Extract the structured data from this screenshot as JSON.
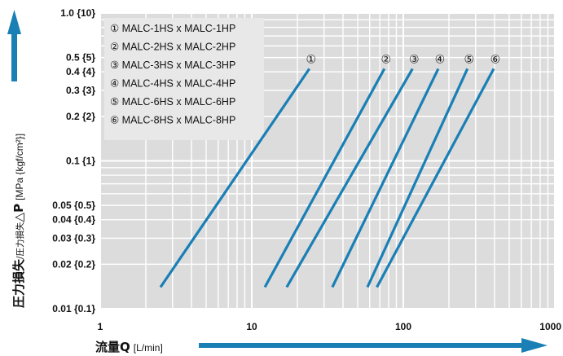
{
  "chart_data": {
    "type": "line",
    "x_scale": "log",
    "y_scale": "log",
    "xlim": [
      1,
      1000
    ],
    "ylim": [
      0.01,
      1.0
    ],
    "grid": true,
    "legend_position": "top-left",
    "x_ticks": [
      "1",
      "10",
      "100",
      "1000"
    ],
    "y_ticks": [
      "0.01 {0.1}",
      "0.02 {0.2}",
      "0.03 {0.3}",
      "0.04 {0.4}",
      "0.05 {0.5}",
      "0.1 {1}",
      "0.2 {2}",
      "0.3 {3}",
      "0.4 {4}",
      "0.5 {5}",
      "1.0 {10}"
    ],
    "xlabel": {
      "main": "流量Q",
      "unit": "[L/min]"
    },
    "ylabel": {
      "main": "圧力損失",
      "sub": "/圧力損失",
      "symbol": "△P",
      "unit": "[MPa {kgf/cm²}]"
    },
    "series": [
      {
        "name": "① MALC-1HS x MALC-1HP",
        "marker": "①",
        "x": [
          2.5,
          24
        ],
        "y": [
          0.014,
          0.42
        ]
      },
      {
        "name": "② MALC-2HS x MALC-2HP",
        "marker": "②",
        "x": [
          12.2,
          75
        ],
        "y": [
          0.014,
          0.42
        ]
      },
      {
        "name": "③ MALC-3HS x MALC-3HP",
        "marker": "③",
        "x": [
          17,
          115
        ],
        "y": [
          0.014,
          0.42
        ]
      },
      {
        "name": "④ MALC-4HS x MALC-4HP",
        "marker": "④",
        "x": [
          34,
          170
        ],
        "y": [
          0.014,
          0.42
        ]
      },
      {
        "name": "⑤ MALC-6HS x MALC-6HP",
        "marker": "⑤",
        "x": [
          58,
          265
        ],
        "y": [
          0.014,
          0.42
        ]
      },
      {
        "name": "⑥ MALC-8HS x MALC-8HP",
        "marker": "⑥",
        "x": [
          67,
          395
        ],
        "y": [
          0.014,
          0.42
        ]
      }
    ]
  },
  "colors": {
    "line": "#1a7fb5",
    "plot_bg": "#dcdcdc",
    "grid": "#ffffff",
    "legend_bg": "#e8e8e8"
  }
}
